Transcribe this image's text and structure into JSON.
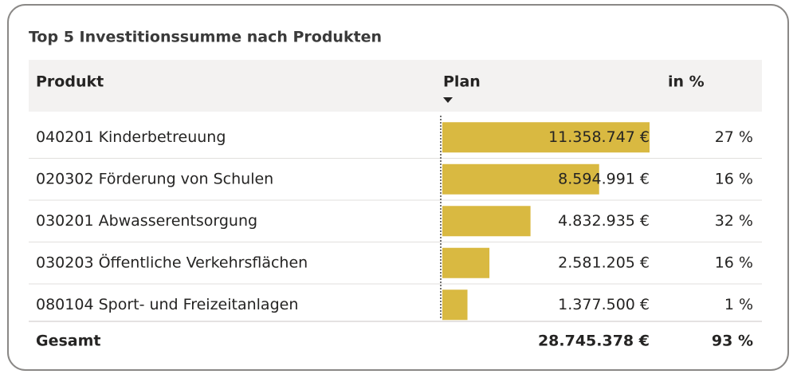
{
  "title": "Top 5 Investitionssumme nach Produkten",
  "table": {
    "headers": [
      "Produkt",
      "Plan",
      "in %"
    ],
    "rows": [
      {
        "produkt": "040201 Kinderbetreuung",
        "plan": 11358747,
        "plan_label": "11.358.747 €",
        "percent": "27 %"
      },
      {
        "produkt": "020302 Förderung von Schulen",
        "plan": 8594991,
        "plan_label": "8.594.991 €",
        "percent": "16 %"
      },
      {
        "produkt": "030201 Abwasserentsorgung",
        "plan": 4832935,
        "plan_label": "4.832.935 €",
        "percent": "32 %"
      },
      {
        "produkt": "030203 Öffentliche Verkehrsflächen",
        "plan": 2581205,
        "plan_label": "2.581.205 €",
        "percent": "16 %"
      },
      {
        "produkt": "080104 Sport- und Freizeitanlagen",
        "plan": 1377500,
        "plan_label": "1.377.500 €",
        "percent": "1 %"
      }
    ],
    "total": {
      "label": "Gesamt",
      "plan_label": "28.745.378 €",
      "percent": "93 %"
    },
    "bar_color": "#d9b941"
  }
}
